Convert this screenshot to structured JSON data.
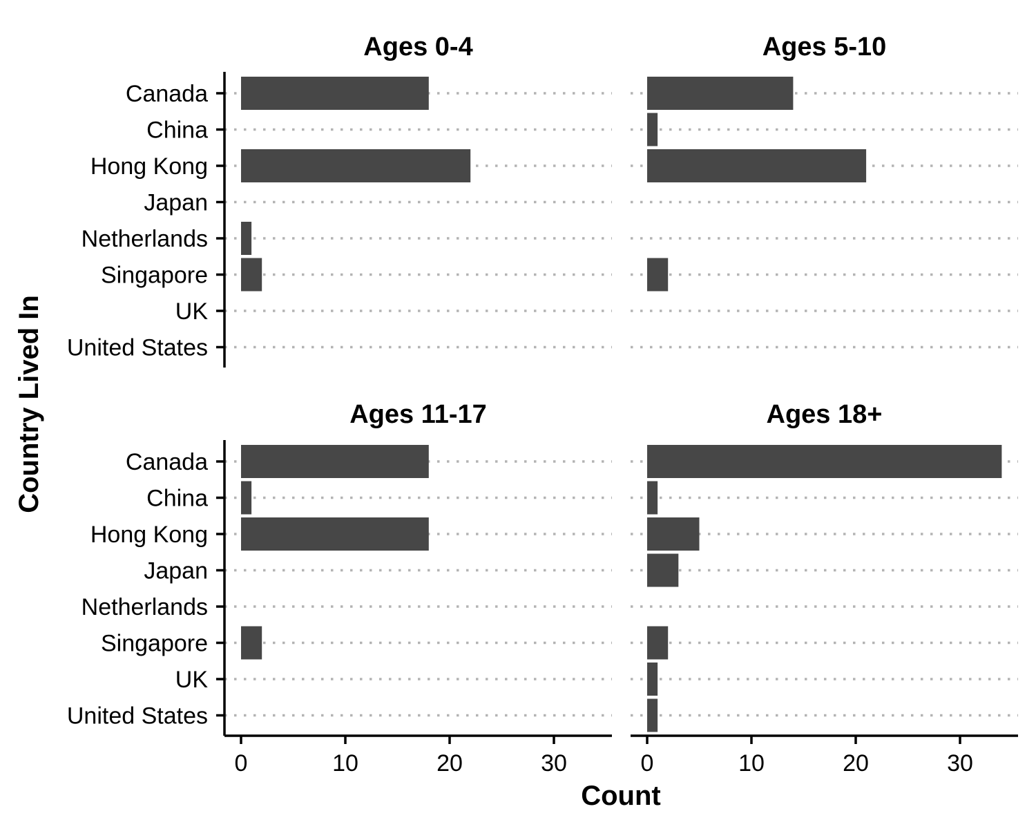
{
  "chart_data": {
    "type": "bar",
    "orientation": "horizontal",
    "xlabel": "Count",
    "ylabel": "Country Lived In",
    "xlim": [
      0,
      35
    ],
    "x_ticks": [
      0,
      10,
      20,
      30
    ],
    "grid": "dotted horizontal lines at each category",
    "bar_color": "#474747",
    "categories": [
      "Canada",
      "China",
      "Hong Kong",
      "Japan",
      "Netherlands",
      "Singapore",
      "UK",
      "United States"
    ],
    "facets": [
      {
        "title": "Ages 0-4",
        "values": [
          18,
          0,
          22,
          0,
          1,
          2,
          0,
          0
        ]
      },
      {
        "title": "Ages 5-10",
        "values": [
          14,
          1,
          21,
          0,
          0,
          2,
          0,
          0
        ]
      },
      {
        "title": "Ages 11-17",
        "values": [
          18,
          1,
          18,
          0,
          0,
          2,
          0,
          0
        ]
      },
      {
        "title": "Ages 18+",
        "values": [
          34,
          1,
          5,
          3,
          0,
          2,
          1,
          1
        ]
      }
    ]
  }
}
